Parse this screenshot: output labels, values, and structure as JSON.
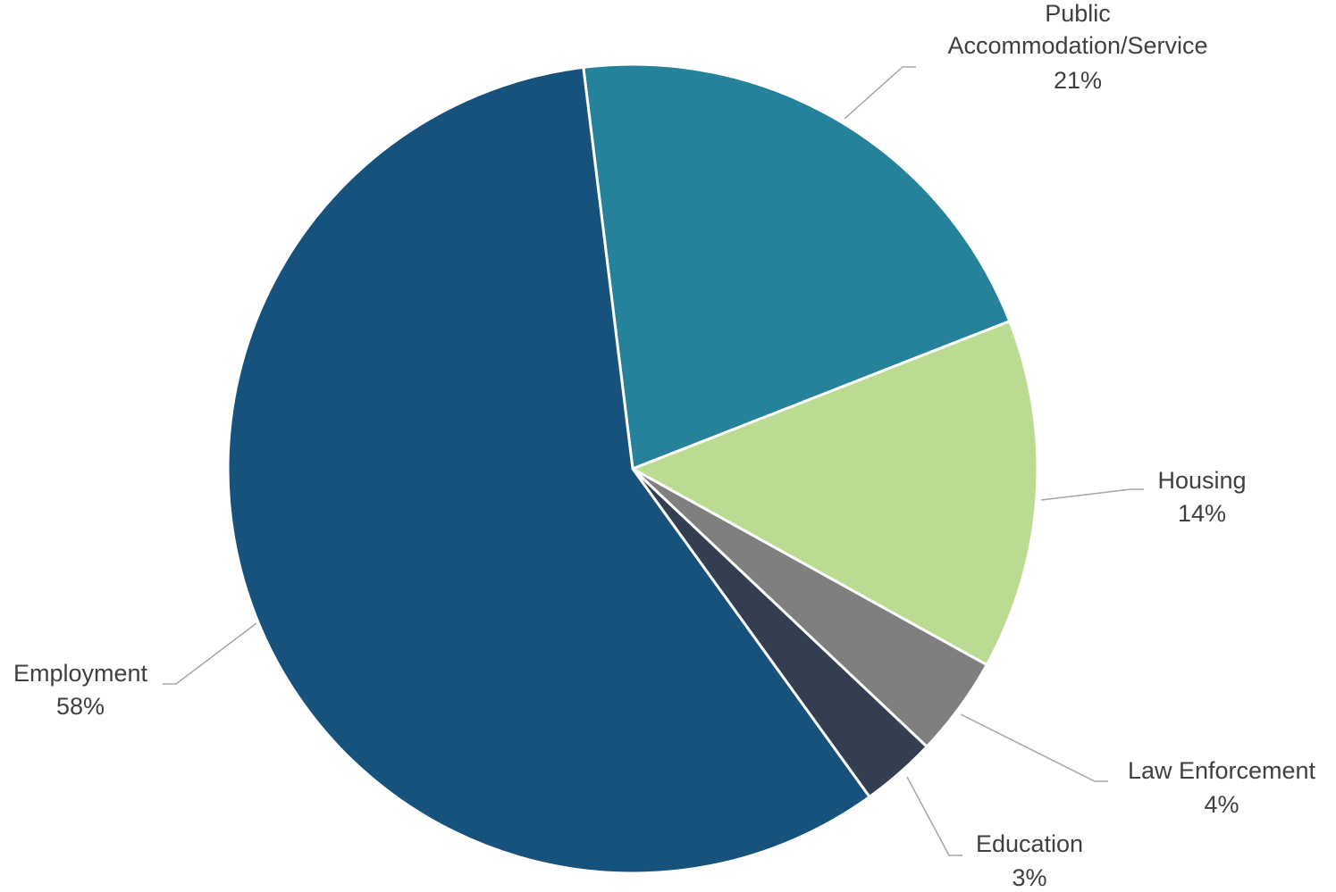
{
  "chart_data": {
    "type": "pie",
    "categories": [
      "Public Accommodation/Service",
      "Housing",
      "Law Enforcement",
      "Education",
      "Employment"
    ],
    "values": [
      21,
      14,
      4,
      3,
      58
    ],
    "value_labels": [
      "21%",
      "14%",
      "4%",
      "3%",
      "58%"
    ],
    "colors": [
      "#26829b",
      "#bbdb93",
      "#7f7f7f",
      "#333f50",
      "#17527d"
    ]
  }
}
